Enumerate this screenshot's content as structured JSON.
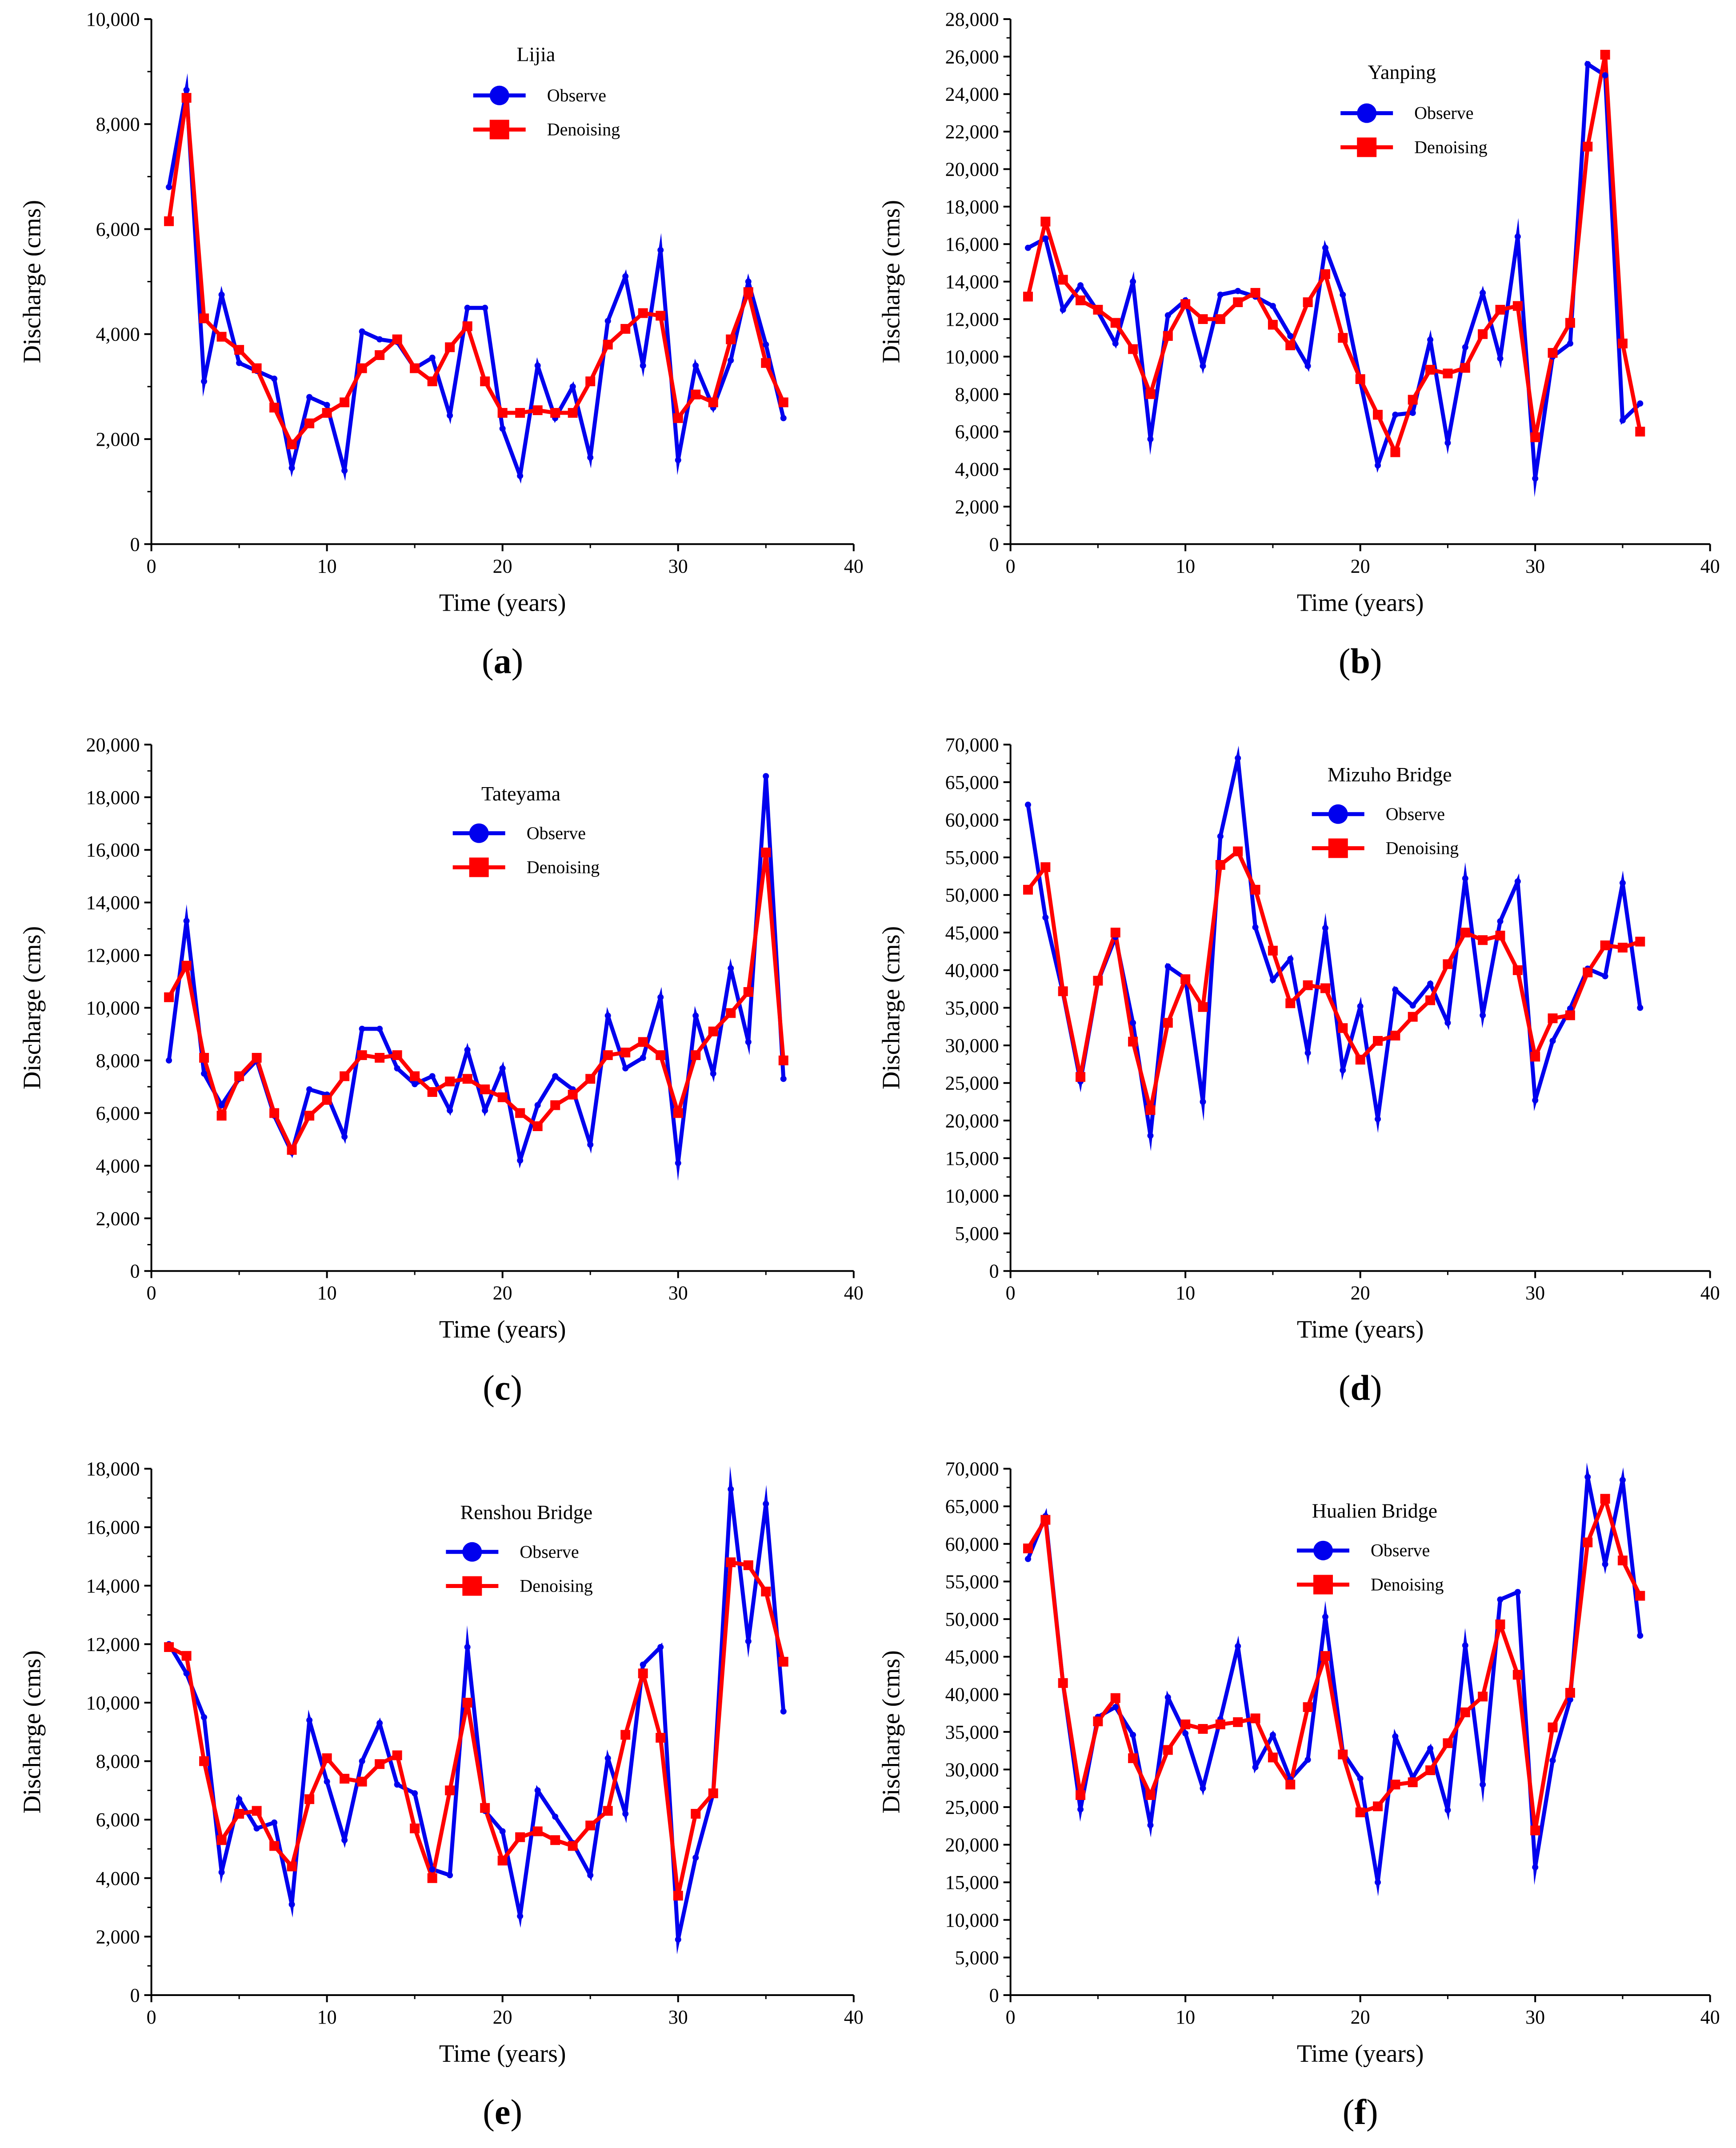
{
  "colors": {
    "observe": "#0000ee",
    "denoising": "#ff0000",
    "axis": "#000000"
  },
  "chart_data": [
    {
      "type": "line",
      "panel_label": "a",
      "title": "Lijia",
      "xlabel": "Time (years)",
      "ylabel": "Discharge (cms)",
      "xlim": [
        0,
        40
      ],
      "ylim": [
        0,
        10000
      ],
      "xticks": [
        0,
        10,
        20,
        30,
        40
      ],
      "xtick_labels": [
        "0",
        "10",
        "20",
        "30",
        "40"
      ],
      "yticks": [
        0,
        2000,
        4000,
        6000,
        8000,
        10000
      ],
      "ytick_labels": [
        "0",
        "2,000",
        "4,000",
        "6,000",
        "8,000",
        "10,000"
      ],
      "x": [
        1,
        2,
        3,
        4,
        5,
        6,
        7,
        8,
        9,
        10,
        11,
        12,
        13,
        14,
        15,
        16,
        17,
        18,
        19,
        20,
        21,
        22,
        23,
        24,
        25,
        26,
        27,
        28,
        29,
        30,
        31,
        32,
        33,
        34,
        35,
        36
      ],
      "series": [
        {
          "name": "Observe",
          "values": [
            6800,
            8650,
            3100,
            4750,
            3450,
            3300,
            3150,
            1450,
            2800,
            2650,
            1400,
            4050,
            3900,
            3850,
            3350,
            3550,
            2450,
            4500,
            4500,
            2200,
            1300,
            3400,
            2400,
            3000,
            1650,
            4250,
            5100,
            3400,
            5600,
            1600,
            3400,
            2600,
            3500,
            5000,
            3800,
            2400
          ]
        },
        {
          "name": "Denoising",
          "values": [
            6150,
            8500,
            4300,
            3950,
            3700,
            3350,
            2600,
            1900,
            2300,
            2500,
            2700,
            3350,
            3600,
            3900,
            3350,
            3100,
            3750,
            4150,
            3100,
            2500,
            2500,
            2550,
            2500,
            2500,
            3100,
            3800,
            4100,
            4400,
            4350,
            2400,
            2850,
            2700,
            3900,
            4800,
            3450,
            2700
          ]
        }
      ],
      "legend": [
        "Observe",
        "Denoising"
      ]
    },
    {
      "type": "line",
      "panel_label": "b",
      "title": "Yanping",
      "xlabel": "Time (years)",
      "ylabel": "Discharge (cms)",
      "xlim": [
        0,
        40
      ],
      "ylim": [
        0,
        28000
      ],
      "xticks": [
        0,
        10,
        20,
        30,
        40
      ],
      "xtick_labels": [
        "0",
        "10",
        "20",
        "30",
        "40"
      ],
      "yticks": [
        0,
        2000,
        4000,
        6000,
        8000,
        10000,
        12000,
        14000,
        16000,
        18000,
        20000,
        22000,
        24000,
        26000,
        28000
      ],
      "ytick_labels": [
        "0",
        "2,000",
        "4,000",
        "6,000",
        "8,000",
        "10,000",
        "12,000",
        "14,000",
        "16,000",
        "18,000",
        "20,000",
        "22,000",
        "24,000",
        "26,000",
        "28,000"
      ],
      "x": [
        1,
        2,
        3,
        4,
        5,
        6,
        7,
        8,
        9,
        10,
        11,
        12,
        13,
        14,
        15,
        16,
        17,
        18,
        19,
        20,
        21,
        22,
        23,
        24,
        25,
        26,
        27,
        28,
        29,
        30,
        31,
        32,
        33,
        34,
        35,
        36
      ],
      "series": [
        {
          "name": "Observe",
          "values": [
            15800,
            16300,
            12500,
            13800,
            12400,
            10700,
            14000,
            5600,
            12200,
            13000,
            9500,
            13300,
            13500,
            13200,
            12700,
            11100,
            9500,
            15800,
            13300,
            8700,
            4200,
            6900,
            7000,
            10900,
            5400,
            10500,
            13400,
            9900,
            16400,
            3500,
            10000,
            10700,
            25600,
            25000,
            6600,
            7500
          ]
        },
        {
          "name": "Denoising",
          "values": [
            13200,
            17200,
            14100,
            13000,
            12500,
            11800,
            10400,
            8000,
            11100,
            12800,
            12000,
            12000,
            12900,
            13400,
            11700,
            10600,
            12900,
            14400,
            11000,
            8800,
            6900,
            4900,
            7700,
            9300,
            9100,
            9400,
            11200,
            12500,
            12700,
            5700,
            10200,
            11800,
            21200,
            26100,
            10700,
            6000
          ]
        }
      ],
      "legend": [
        "Observe",
        "Denoising"
      ]
    },
    {
      "type": "line",
      "panel_label": "c",
      "title": "Tateyama",
      "xlabel": "Time (years)",
      "ylabel": "Discharge (cms)",
      "xlim": [
        0,
        40
      ],
      "ylim": [
        0,
        20000
      ],
      "xticks": [
        0,
        10,
        20,
        30,
        40
      ],
      "xtick_labels": [
        "0",
        "10",
        "20",
        "30",
        "40"
      ],
      "yticks": [
        0,
        2000,
        4000,
        6000,
        8000,
        10000,
        12000,
        14000,
        16000,
        18000,
        20000
      ],
      "ytick_labels": [
        "0",
        "2,000",
        "4,000",
        "6,000",
        "8,000",
        "10,000",
        "12,000",
        "14,000",
        "16,000",
        "18,000",
        "20,000"
      ],
      "x": [
        1,
        2,
        3,
        4,
        5,
        6,
        7,
        8,
        9,
        10,
        11,
        12,
        13,
        14,
        15,
        16,
        17,
        18,
        19,
        20,
        21,
        22,
        23,
        24,
        25,
        26,
        27,
        28,
        29,
        30,
        31,
        32,
        33,
        34,
        35,
        36
      ],
      "series": [
        {
          "name": "Observe",
          "values": [
            8000,
            13300,
            7500,
            6300,
            7300,
            8000,
            5900,
            4500,
            6900,
            6700,
            5100,
            9200,
            9200,
            7700,
            7100,
            7400,
            6100,
            8400,
            6100,
            7700,
            4200,
            6300,
            7400,
            6900,
            4800,
            9700,
            7700,
            8100,
            10400,
            4100,
            9700,
            7500,
            11500,
            8700,
            18800,
            7300
          ]
        },
        {
          "name": "Denoising",
          "values": [
            10400,
            11600,
            8100,
            5900,
            7400,
            8100,
            6000,
            4600,
            5900,
            6500,
            7400,
            8200,
            8100,
            8200,
            7400,
            6800,
            7200,
            7300,
            6900,
            6600,
            6000,
            5500,
            6300,
            6700,
            7300,
            8200,
            8300,
            8700,
            8200,
            6000,
            8200,
            9100,
            9800,
            10600,
            15900,
            8000
          ]
        }
      ],
      "legend": [
        "Observe",
        "Denoising"
      ]
    },
    {
      "type": "line",
      "panel_label": "d",
      "title": "Mizuho Bridge",
      "xlabel": "Time (years)",
      "ylabel": "Discharge (cms)",
      "xlim": [
        0,
        40
      ],
      "ylim": [
        0,
        70000
      ],
      "xticks": [
        0,
        10,
        20,
        30,
        40
      ],
      "xtick_labels": [
        "0",
        "10",
        "20",
        "30",
        "40"
      ],
      "yticks": [
        0,
        5000,
        10000,
        15000,
        20000,
        25000,
        30000,
        35000,
        40000,
        45000,
        50000,
        55000,
        60000,
        65000,
        70000
      ],
      "ytick_labels": [
        "0",
        "5,000",
        "10,000",
        "15,000",
        "20,000",
        "25,000",
        "30,000",
        "35,000",
        "40,000",
        "45,000",
        "50,000",
        "55,000",
        "60,000",
        "65,000",
        "70,000"
      ],
      "x": [
        1,
        2,
        3,
        4,
        5,
        6,
        7,
        8,
        9,
        10,
        11,
        12,
        13,
        14,
        15,
        16,
        17,
        18,
        19,
        20,
        21,
        22,
        23,
        24,
        25,
        26,
        27,
        28,
        29,
        30,
        31,
        32,
        33,
        34,
        35,
        36
      ],
      "series": [
        {
          "name": "Observe",
          "values": [
            62000,
            47000,
            37000,
            25200,
            38500,
            44400,
            33000,
            18000,
            40500,
            38900,
            22500,
            57800,
            68200,
            45700,
            38700,
            41500,
            29000,
            45600,
            26700,
            35200,
            20200,
            37400,
            35300,
            38200,
            33000,
            52200,
            34000,
            46500,
            51800,
            22700,
            30600,
            34900,
            40200,
            39200,
            51600,
            35000
          ]
        },
        {
          "name": "Denoising",
          "values": [
            50700,
            53700,
            37200,
            25800,
            38600,
            45000,
            30500,
            21400,
            33000,
            38800,
            35100,
            54000,
            55800,
            50700,
            42600,
            35600,
            38000,
            37600,
            32300,
            28100,
            30600,
            31300,
            33800,
            36000,
            40800,
            45000,
            44000,
            44600,
            40000,
            28500,
            33600,
            34000,
            39700,
            43300,
            43000,
            43800
          ]
        }
      ],
      "legend": [
        "Observe",
        "Denoising"
      ]
    },
    {
      "type": "line",
      "panel_label": "e",
      "title": "Renshou Bridge",
      "xlabel": "Time (years)",
      "ylabel": "Discharge (cms)",
      "xlim": [
        0,
        40
      ],
      "ylim": [
        0,
        18000
      ],
      "xticks": [
        0,
        10,
        20,
        30,
        40
      ],
      "xtick_labels": [
        "0",
        "10",
        "20",
        "30",
        "40"
      ],
      "yticks": [
        0,
        2000,
        4000,
        6000,
        8000,
        10000,
        12000,
        14000,
        16000,
        18000
      ],
      "ytick_labels": [
        "0",
        "2,000",
        "4,000",
        "6,000",
        "8,000",
        "10,000",
        "12,000",
        "14,000",
        "16,000",
        "18,000"
      ],
      "x": [
        1,
        2,
        3,
        4,
        5,
        6,
        7,
        8,
        9,
        10,
        11,
        12,
        13,
        14,
        15,
        16,
        17,
        18,
        19,
        20,
        21,
        22,
        23,
        24,
        25,
        26,
        27,
        28,
        29,
        30,
        31,
        32,
        33,
        34,
        35,
        36
      ],
      "series": [
        {
          "name": "Observe",
          "values": [
            12000,
            11000,
            9500,
            4200,
            6700,
            5700,
            5900,
            3100,
            9400,
            7300,
            5300,
            8000,
            9300,
            7200,
            6900,
            4300,
            4100,
            11900,
            6300,
            5600,
            2700,
            7000,
            6100,
            5200,
            4100,
            8100,
            6200,
            11300,
            11900,
            1900,
            4700,
            6900,
            17300,
            12100,
            16800,
            9700
          ]
        },
        {
          "name": "Denoising",
          "values": [
            11900,
            11600,
            8000,
            5300,
            6200,
            6300,
            5100,
            4400,
            6700,
            8100,
            7400,
            7300,
            7900,
            8200,
            5700,
            4000,
            7000,
            10000,
            6400,
            4600,
            5400,
            5600,
            5300,
            5100,
            5800,
            6300,
            8900,
            11000,
            8800,
            3400,
            6200,
            6900,
            14800,
            14700,
            13800,
            11400
          ]
        }
      ],
      "legend": [
        "Observe",
        "Denoising"
      ]
    },
    {
      "type": "line",
      "panel_label": "f",
      "title": "Hualien Bridge",
      "xlabel": "Time (years)",
      "ylabel": "Discharge (cms)",
      "xlim": [
        0,
        40
      ],
      "ylim": [
        0,
        70000
      ],
      "xticks": [
        0,
        10,
        20,
        30,
        40
      ],
      "xtick_labels": [
        "0",
        "10",
        "20",
        "30",
        "40"
      ],
      "yticks": [
        0,
        5000,
        10000,
        15000,
        20000,
        25000,
        30000,
        35000,
        40000,
        45000,
        50000,
        55000,
        60000,
        65000,
        70000
      ],
      "ytick_labels": [
        "0",
        "5,000",
        "10,000",
        "15,000",
        "20,000",
        "25,000",
        "30,000",
        "35,000",
        "40,000",
        "45,000",
        "50,000",
        "55,000",
        "60,000",
        "65,000",
        "70,000"
      ],
      "x": [
        1,
        2,
        3,
        4,
        5,
        6,
        7,
        8,
        9,
        10,
        11,
        12,
        13,
        14,
        15,
        16,
        17,
        18,
        19,
        20,
        21,
        22,
        23,
        24,
        25,
        26,
        27,
        28,
        29,
        30,
        31,
        32,
        33,
        34,
        35,
        36
      ],
      "series": [
        {
          "name": "Observe",
          "values": [
            58000,
            63700,
            41500,
            24700,
            37000,
            38300,
            34600,
            22600,
            39600,
            34800,
            27500,
            36700,
            46400,
            30300,
            34600,
            28700,
            31300,
            50300,
            32300,
            28800,
            15000,
            34400,
            28900,
            32800,
            24600,
            46500,
            28000,
            52600,
            53600,
            17000,
            31200,
            39300,
            68900,
            57300,
            68500,
            47800
          ]
        },
        {
          "name": "Denoising",
          "values": [
            59400,
            63200,
            41500,
            26600,
            36400,
            39500,
            31500,
            26600,
            32600,
            36000,
            35400,
            36000,
            36300,
            36800,
            31600,
            28000,
            38300,
            45100,
            32000,
            24300,
            25100,
            28000,
            28300,
            29900,
            33500,
            37600,
            39700,
            49300,
            42600,
            21900,
            35600,
            40200,
            60200,
            66000,
            57800,
            53100
          ]
        }
      ],
      "legend": [
        "Observe",
        "Denoising"
      ]
    }
  ]
}
